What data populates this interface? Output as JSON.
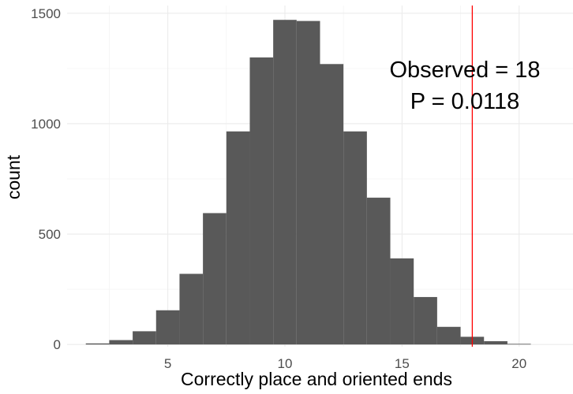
{
  "chart_data": {
    "type": "bar",
    "xlabel": "Correctly place and oriented ends",
    "ylabel": "count",
    "x_ticks": [
      5,
      10,
      15,
      20
    ],
    "y_ticks": [
      0,
      500,
      1000,
      1500
    ],
    "xlim": [
      0.7,
      22.3
    ],
    "ylim": [
      -10,
      1535
    ],
    "bin_width": 1,
    "bins": [
      {
        "x": 2,
        "count": 5
      },
      {
        "x": 3,
        "count": 20
      },
      {
        "x": 4,
        "count": 60
      },
      {
        "x": 5,
        "count": 155
      },
      {
        "x": 6,
        "count": 320
      },
      {
        "x": 7,
        "count": 595
      },
      {
        "x": 8,
        "count": 965
      },
      {
        "x": 9,
        "count": 1300
      },
      {
        "x": 10,
        "count": 1470
      },
      {
        "x": 11,
        "count": 1465
      },
      {
        "x": 12,
        "count": 1270
      },
      {
        "x": 13,
        "count": 965
      },
      {
        "x": 14,
        "count": 665
      },
      {
        "x": 15,
        "count": 390
      },
      {
        "x": 16,
        "count": 215
      },
      {
        "x": 17,
        "count": 80
      },
      {
        "x": 18,
        "count": 35
      },
      {
        "x": 19,
        "count": 15
      },
      {
        "x": 20,
        "count": 3
      }
    ],
    "observed_line": {
      "x": 18,
      "color": "#ff0000"
    },
    "annotations": [
      "Observed = 18",
      "P = 0.0118"
    ],
    "bar_color": "#595959",
    "grid": true
  }
}
